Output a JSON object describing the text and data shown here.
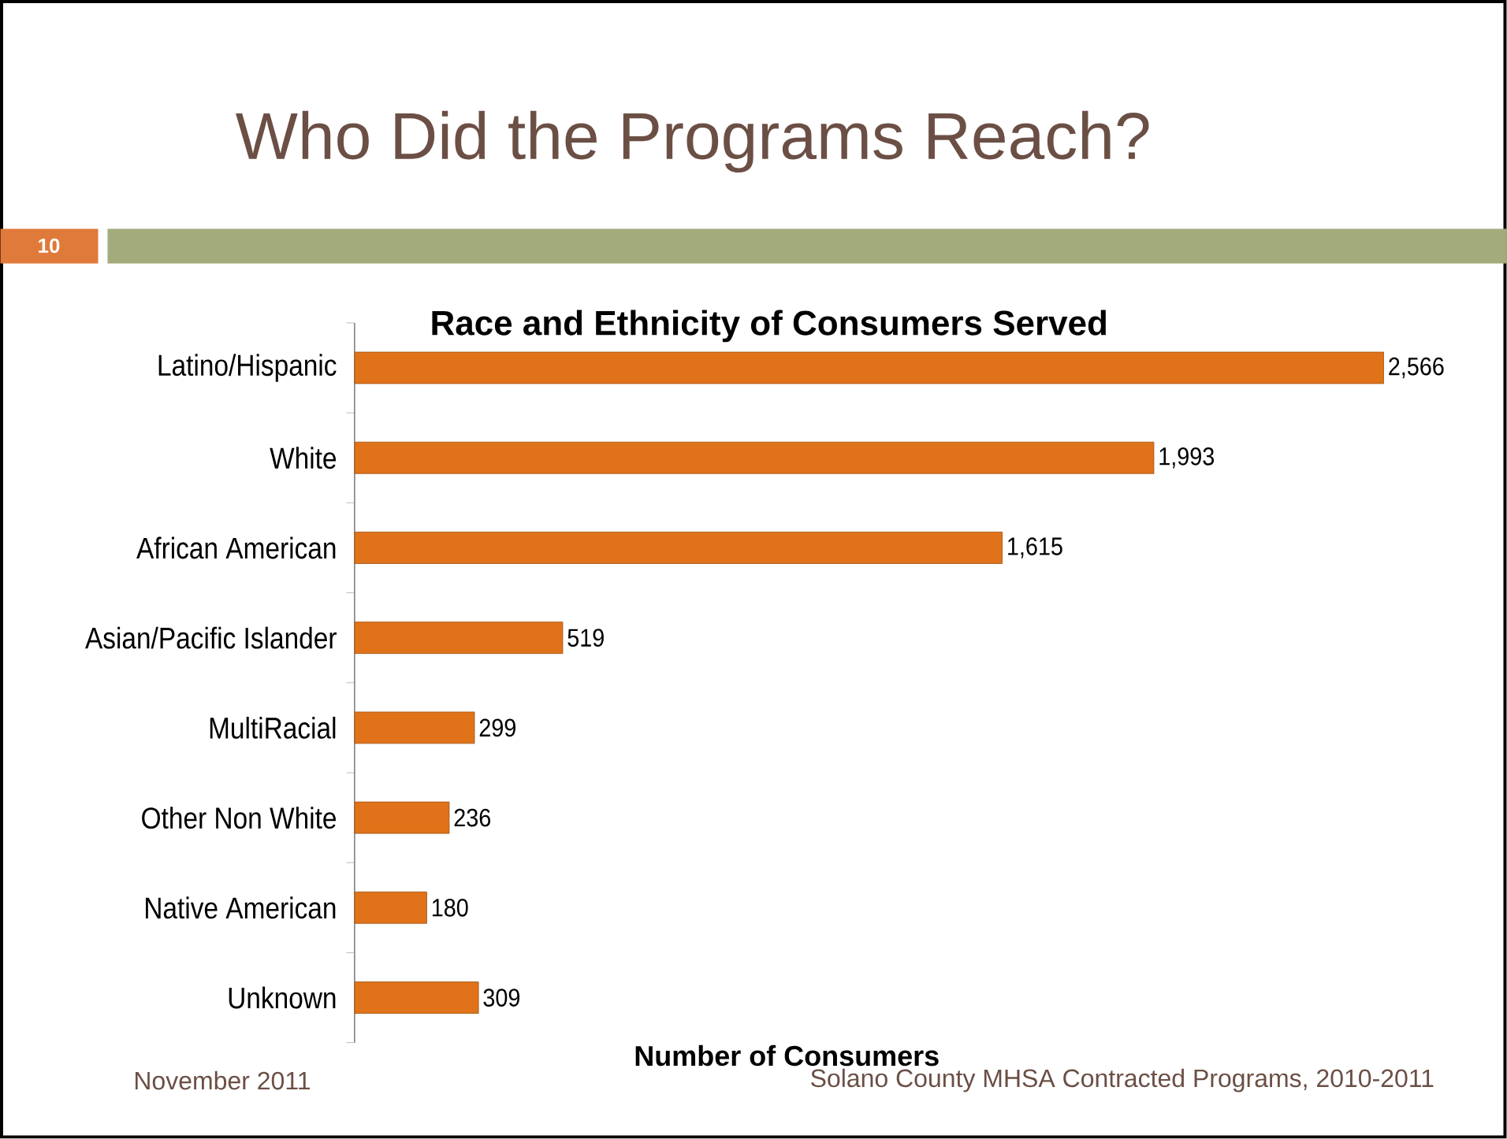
{
  "chart_data": {
    "type": "bar",
    "orientation": "horizontal",
    "title": "Who Did the Programs Reach?",
    "subtitle": "Race and Ethnicity of Consumers Served",
    "xlabel": "Number of Consumers",
    "categories": [
      "Latino/Hispanic",
      "White",
      "African American",
      "Asian/Pacific Islander",
      "MultiRacial",
      "Other Non White",
      "Native American",
      "Unknown"
    ],
    "values": [
      2566,
      1993,
      1615,
      519,
      299,
      236,
      180,
      309
    ],
    "value_labels": [
      "2,566",
      "1,993",
      "1,615",
      "519",
      "299",
      "236",
      "180",
      "309"
    ],
    "color": "#e07219",
    "annotations": [
      "10",
      "November 2011",
      "Solano County MHSA Contracted Programs, 2010-2011"
    ]
  }
}
